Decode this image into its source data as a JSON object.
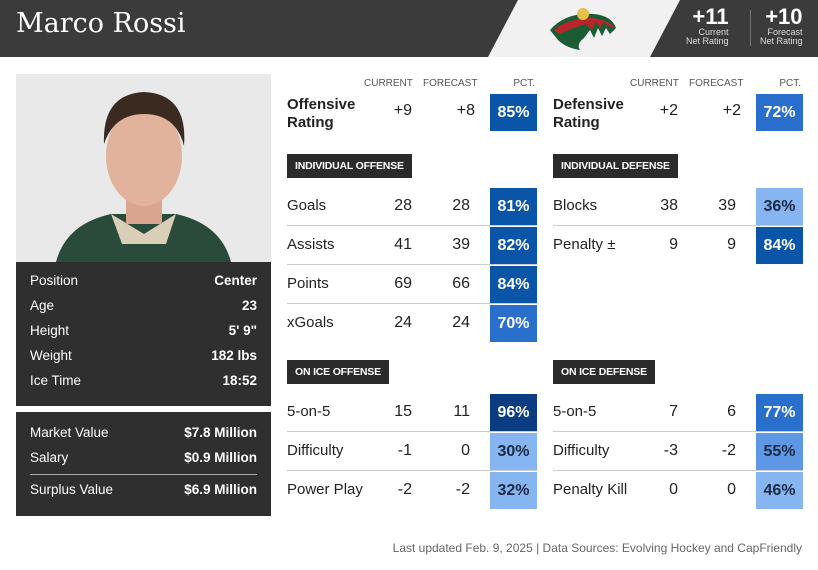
{
  "player": {
    "name": "Marco Rossi",
    "team_logo": "minnesota-wild-logo"
  },
  "net": {
    "current": "+11",
    "current_label1": "Current",
    "current_label2": "Net Rating",
    "forecast": "+10",
    "forecast_label1": "Forecast",
    "forecast_label2": "Net Rating"
  },
  "info": [
    {
      "k": "Position",
      "v": "Center"
    },
    {
      "k": "Age",
      "v": "23"
    },
    {
      "k": "Height",
      "v": "5' 9\""
    },
    {
      "k": "Weight",
      "v": "182 lbs"
    },
    {
      "k": "Ice Time",
      "v": "18:52"
    }
  ],
  "money": [
    {
      "k": "Market Value",
      "v": "$7.8 Million"
    },
    {
      "k": "Salary",
      "v": "$0.9 Million"
    },
    {
      "k": "Surplus Value",
      "v": "$6.9 Million"
    }
  ],
  "cols": {
    "current": "CURRENT",
    "forecast": "FORECAST",
    "pct": "PCT."
  },
  "offense": {
    "label1": "Offensive",
    "label2": "Rating",
    "current": "+9",
    "forecast": "+8",
    "pct": "85%",
    "pct_value": 85,
    "individual_title": "INDIVIDUAL OFFENSE",
    "individual": [
      {
        "k": "Goals",
        "c": "28",
        "f": "28",
        "p": "81%",
        "pv": 81
      },
      {
        "k": "Assists",
        "c": "41",
        "f": "39",
        "p": "82%",
        "pv": 82
      },
      {
        "k": "Points",
        "c": "69",
        "f": "66",
        "p": "84%",
        "pv": 84
      },
      {
        "k": "xGoals",
        "c": "24",
        "f": "24",
        "p": "70%",
        "pv": 70
      }
    ],
    "onice_title": "ON ICE OFFENSE",
    "onice": [
      {
        "k": "5-on-5",
        "c": "15",
        "f": "11",
        "p": "96%",
        "pv": 96
      },
      {
        "k": "Difficulty",
        "c": "-1",
        "f": "0",
        "p": "30%",
        "pv": 30
      },
      {
        "k": "Power Play",
        "c": "-2",
        "f": "-2",
        "p": "32%",
        "pv": 32
      }
    ]
  },
  "defense": {
    "label1": "Defensive",
    "label2": "Rating",
    "current": "+2",
    "forecast": "+2",
    "pct": "72%",
    "pct_value": 72,
    "individual_title": "INDIVIDUAL DEFENSE",
    "individual": [
      {
        "k": "Blocks",
        "c": "38",
        "f": "39",
        "p": "36%",
        "pv": 36
      },
      {
        "k": "Penalty ±",
        "c": "9",
        "f": "9",
        "p": "84%",
        "pv": 84
      }
    ],
    "onice_title": "ON ICE DEFENSE",
    "onice": [
      {
        "k": "5-on-5",
        "c": "7",
        "f": "6",
        "p": "77%",
        "pv": 77
      },
      {
        "k": "Difficulty",
        "c": "-3",
        "f": "-2",
        "p": "55%",
        "pv": 55
      },
      {
        "k": "Penalty Kill",
        "c": "0",
        "f": "0",
        "p": "46%",
        "pv": 46
      }
    ]
  },
  "colors": {
    "p90": "#0a3c82",
    "p80": "#0b55a8",
    "p70": "#2a6fcc",
    "p50": "#5e98e4",
    "low": "#86b5f1"
  },
  "footer": "Last updated Feb. 9, 2025 | Data Sources: Evolving Hockey and CapFriendly"
}
